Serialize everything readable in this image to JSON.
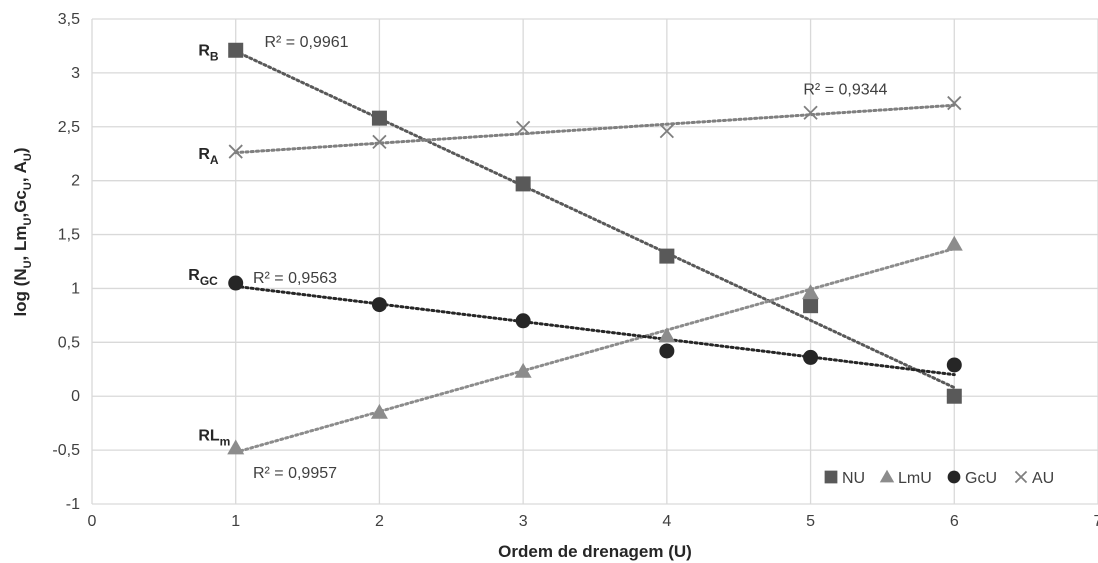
{
  "chart_data": {
    "type": "scatter",
    "title": "",
    "xlabel": "Ordem de drenagem (U)",
    "ylabel_parts": [
      "log (N",
      "U",
      ", Lm",
      "U",
      ",Gc",
      "U",
      ", A",
      "U",
      ")"
    ],
    "xlim": [
      0,
      7
    ],
    "ylim": [
      -1,
      3.5
    ],
    "x_ticks": [
      "0",
      "1",
      "2",
      "3",
      "4",
      "5",
      "6",
      "7"
    ],
    "y_ticks": [
      "-1",
      "-0,5",
      "0",
      "0,5",
      "1",
      "1,5",
      "2",
      "2,5",
      "3",
      "3,5"
    ],
    "grid": true,
    "legend_position": "bottom-right",
    "x": [
      1,
      2,
      3,
      4,
      5,
      6
    ],
    "series": [
      {
        "name": "NU",
        "marker": "square",
        "color": "#595959",
        "values": [
          3.21,
          2.58,
          1.97,
          1.3,
          0.84,
          0.0
        ],
        "trend": {
          "x0": 1,
          "y0": 3.2,
          "x1": 6,
          "y1": 0.08,
          "color": "#595959"
        }
      },
      {
        "name": "LmU",
        "marker": "triangle",
        "color": "#8c8c8c",
        "values": [
          -0.48,
          -0.15,
          0.23,
          0.56,
          0.96,
          1.41
        ],
        "trend": {
          "x0": 1,
          "y0": -0.52,
          "x1": 6,
          "y1": 1.37,
          "color": "#8c8c8c"
        }
      },
      {
        "name": "GcU",
        "marker": "circle",
        "color": "#262626",
        "values": [
          1.05,
          0.85,
          0.7,
          0.42,
          0.36,
          0.29
        ],
        "trend": {
          "x0": 1,
          "y0": 1.02,
          "x1": 6,
          "y1": 0.2,
          "color": "#262626"
        }
      },
      {
        "name": "AU",
        "marker": "x",
        "color": "#7f7f7f",
        "values": [
          2.27,
          2.36,
          2.49,
          2.46,
          2.63,
          2.72
        ],
        "trend": {
          "x0": 1,
          "y0": 2.26,
          "x1": 6,
          "y1": 2.7,
          "color": "#7f7f7f"
        }
      }
    ],
    "annotations": {
      "r2": [
        {
          "text": "R² = 0,9961",
          "x": 1.2,
          "y": 3.24
        },
        {
          "text": "R² = 0,9344",
          "x": 4.95,
          "y": 2.8
        },
        {
          "text": "R² = 0,9563",
          "x": 1.12,
          "y": 1.05
        },
        {
          "text": "R² = 0,9957",
          "x": 1.12,
          "y": -0.76
        }
      ],
      "ratios": [
        {
          "main": "R",
          "sub": "B",
          "x": 0.74,
          "y": 3.16
        },
        {
          "main": "R",
          "sub": "A",
          "x": 0.74,
          "y": 2.2
        },
        {
          "main": "R",
          "sub": "GC",
          "x": 0.67,
          "y": 1.08
        },
        {
          "main": "RL",
          "sub": "m",
          "x": 0.74,
          "y": -0.41
        }
      ]
    }
  }
}
